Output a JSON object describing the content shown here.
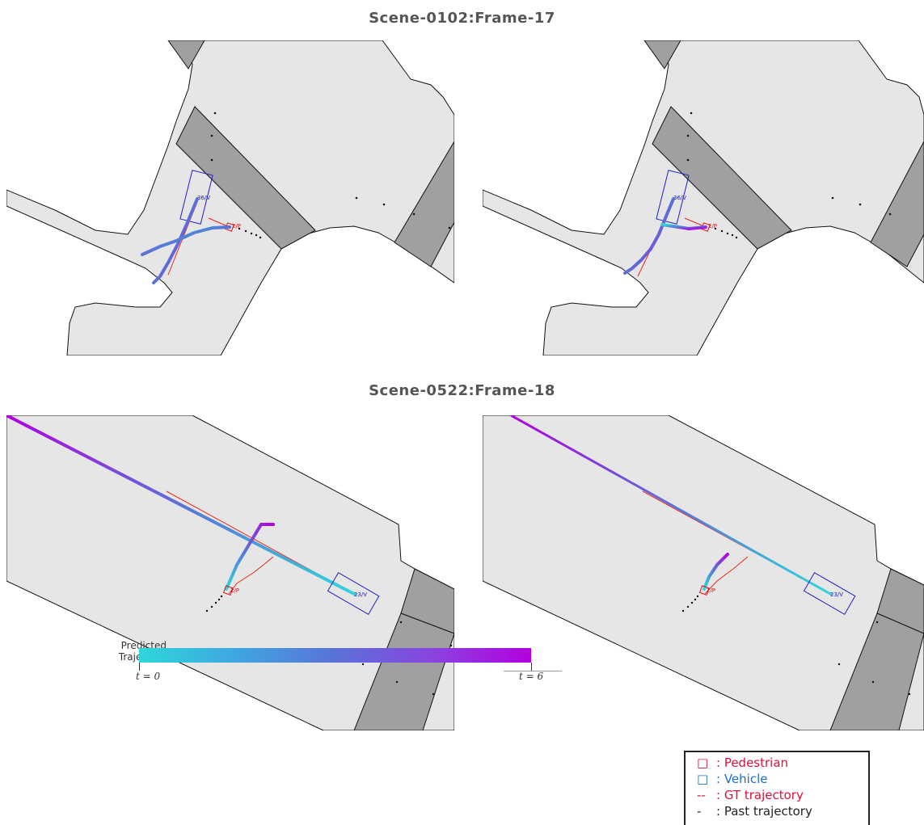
{
  "titles": {
    "scene1": "Scene-0102:Frame-17",
    "scene2": "Scene-0522:Frame-18"
  },
  "agents": {
    "scene1_vehicle": "36/V",
    "scene1_pedestrian": "2/P",
    "scene2_vehicle": "23/V",
    "scene2_pedestrian": "2/P"
  },
  "colorbar": {
    "label_line1": "Predicted",
    "label_line2": "Trajectory",
    "start": "t = 0",
    "end": "t = 6",
    "color_start": "#2fd6da",
    "color_end": "#b200de"
  },
  "legend": {
    "pedestrian_symbol": "□",
    "pedestrian_label": ": Pedestrian",
    "vehicle_symbol": "□",
    "vehicle_label": ": Vehicle",
    "gt_symbol": "--",
    "gt_label": ": GT trajectory",
    "past_symbol": "-",
    "past_label": ": Past trajectory",
    "pedestrian_color": "#d6133c",
    "vehicle_color": "#1f6fc0",
    "gt_color": "#d6133c",
    "past_color": "#222222"
  },
  "colors": {
    "road": "#e6e6e6",
    "crosswalk": "#a0a0a0",
    "agent_box_vehicle": "#2020c8",
    "agent_box_pedestrian": "#e01010",
    "gt_line": "#e8281e"
  }
}
